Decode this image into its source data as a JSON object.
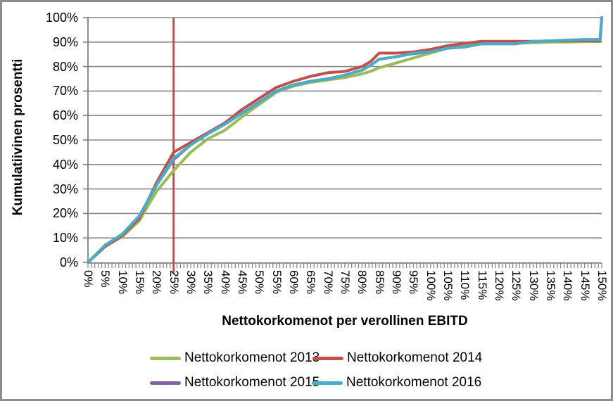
{
  "chart_data": {
    "type": "line",
    "title": "",
    "xlabel": "Nettokorkomenot per verollinen EBITD",
    "ylabel": "Kumulatiivinen prosentti",
    "xlim": [
      0,
      150
    ],
    "ylim": [
      0,
      100
    ],
    "grid": "horizontal",
    "legend_position": "bottom",
    "x_tick_labels": [
      "0%",
      "5%",
      "10%",
      "15%",
      "20%",
      "25%",
      "30%",
      "35%",
      "40%",
      "45%",
      "50%",
      "55%",
      "60%",
      "65%",
      "70%",
      "75%",
      "80%",
      "85%",
      "90%",
      "95%",
      "100%",
      "105%",
      "110%",
      "115%",
      "120%",
      "125%",
      "130%",
      "135%",
      "140%",
      "145%",
      "150%"
    ],
    "x_tick_values": [
      0,
      5,
      10,
      15,
      20,
      25,
      30,
      35,
      40,
      45,
      50,
      55,
      60,
      65,
      70,
      75,
      80,
      85,
      90,
      95,
      100,
      105,
      110,
      115,
      120,
      125,
      130,
      135,
      140,
      145,
      150
    ],
    "y_tick_labels": [
      "0%",
      "10%",
      "20%",
      "30%",
      "40%",
      "50%",
      "60%",
      "70%",
      "80%",
      "90%",
      "100%"
    ],
    "reference_line": {
      "x": 25,
      "color": "#C0504D"
    },
    "x": [
      0,
      5,
      10,
      15,
      20,
      25,
      30,
      35,
      40,
      45,
      50,
      55,
      60,
      65,
      70,
      75,
      80,
      82.5,
      85,
      90,
      95,
      100,
      105,
      110,
      115,
      120,
      125,
      130,
      135,
      140,
      145,
      149.5,
      150
    ],
    "series": [
      {
        "name": "Nettokorkomenot 2013",
        "color": "#9BBB59",
        "values": [
          0,
          6.5,
          10.5,
          17,
          29,
          37.5,
          45,
          50.5,
          54,
          59.5,
          64.5,
          69.5,
          72,
          73.5,
          74.5,
          75.5,
          77,
          78,
          79.5,
          81.5,
          83.5,
          85.5,
          87.5,
          89,
          89.3,
          89.5,
          89.5,
          89.7,
          90,
          90,
          90.2,
          90.2,
          100
        ]
      },
      {
        "name": "Nettokorkomenot 2014",
        "color": "#C0504D",
        "values": [
          0,
          6.5,
          11,
          18,
          32.5,
          45,
          49,
          53,
          57,
          62.5,
          67,
          71.5,
          74,
          76,
          77.5,
          78,
          80,
          82,
          85.5,
          85.5,
          86,
          87,
          88.5,
          89.5,
          90.3,
          90.3,
          90.3,
          90.3,
          90.4,
          90.5,
          90.5,
          90.5,
          100
        ]
      },
      {
        "name": "Nettokorkomenot 2015",
        "color": "#8064A2",
        "values": [
          0,
          7,
          11.5,
          19,
          31.5,
          42,
          48,
          52.5,
          56.5,
          61,
          65.5,
          70,
          72.5,
          74,
          75,
          76.5,
          78.5,
          80.5,
          83,
          84,
          85.3,
          86,
          87.5,
          88,
          89.3,
          89.3,
          89.3,
          90.3,
          90.5,
          90.8,
          91,
          91,
          100
        ]
      },
      {
        "name": "Nettokorkomenot 2016",
        "color": "#4BACC6",
        "values": [
          0,
          7,
          11.5,
          19,
          31.5,
          42.5,
          48,
          52.5,
          56.5,
          61,
          65.5,
          70,
          72.5,
          74,
          75,
          76.5,
          78.5,
          80.5,
          83,
          84,
          85.5,
          86,
          87.5,
          88,
          89.3,
          89.3,
          89.3,
          90.3,
          90.5,
          90.8,
          91,
          91,
          100
        ]
      }
    ]
  },
  "colors": {
    "gridline": "#878787",
    "axis": "#7f7f7f",
    "tick": "#7f7f7f",
    "border": "#8c8c8c",
    "text": "#000000"
  }
}
